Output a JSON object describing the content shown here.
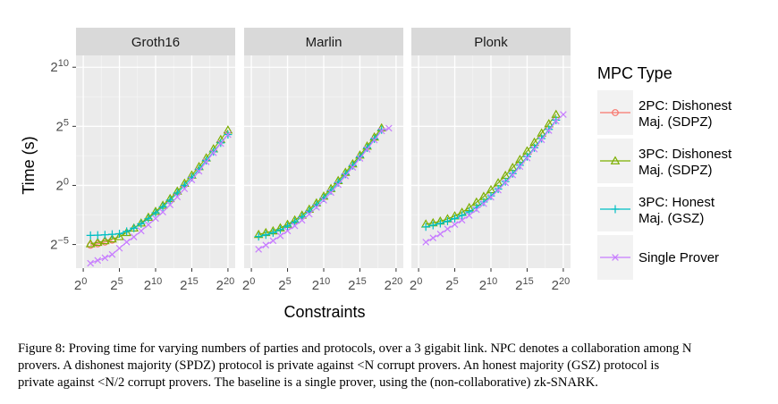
{
  "chart_data": {
    "type": "line",
    "facet_titles": [
      "Groth16",
      "Marlin",
      "Plonk"
    ],
    "xlabel": "Constraints",
    "ylabel": "Time (s)",
    "x_scale": "log2",
    "y_scale": "log2",
    "x_ticks": [
      {
        "value": 1,
        "base": "2",
        "exp": "0"
      },
      {
        "value": 32,
        "base": "2",
        "exp": "5"
      },
      {
        "value": 1024,
        "base": "2",
        "exp": "10"
      },
      {
        "value": 32768,
        "base": "2",
        "exp": "15"
      },
      {
        "value": 1048576,
        "base": "2",
        "exp": "20"
      }
    ],
    "y_ticks": [
      {
        "value": 0.03125,
        "base": "2",
        "exp": "−5"
      },
      {
        "value": 1,
        "base": "2",
        "exp": "0"
      },
      {
        "value": 32,
        "base": "2",
        "exp": "5"
      },
      {
        "value": 1024,
        "base": "2",
        "exp": "10"
      }
    ],
    "xlim": [
      0.5,
      2097152
    ],
    "ylim": [
      0.0078125,
      2048
    ],
    "grid": true,
    "legend": {
      "title": "MPC Type",
      "position": "right",
      "entries": [
        {
          "key": "2pc",
          "line1": "2PC: Dishonest",
          "line2": "Maj. (SDPZ)",
          "color": "#f8766d",
          "marker": "circle"
        },
        {
          "key": "3pcd",
          "line1": "3PC: Dishonest",
          "line2": "Maj. (SDPZ)",
          "color": "#7cae00",
          "marker": "triangle"
        },
        {
          "key": "3pch",
          "line1": "3PC: Honest",
          "line2": "Maj. (GSZ)",
          "color": "#00bfc4",
          "marker": "plus"
        },
        {
          "key": "single",
          "line1": "Single Prover",
          "line2": "",
          "color": "#c77cff",
          "marker": "cross"
        }
      ]
    },
    "facets": [
      {
        "name": "Groth16",
        "series": [
          {
            "key": "2pc",
            "points": [
              [
                2,
                0.03
              ],
              [
                4,
                0.0325
              ],
              [
                8,
                0.0359
              ],
              [
                16,
                0.0403
              ]
            ]
          },
          {
            "key": "3pcd",
            "points": [
              [
                2,
                0.0325
              ],
              [
                4,
                0.0352
              ],
              [
                8,
                0.0388
              ],
              [
                16,
                0.0432
              ],
              [
                32,
                0.0493
              ],
              [
                64,
                0.0628
              ],
              [
                128,
                0.0817
              ],
              [
                256,
                0.1097
              ],
              [
                512,
                0.1535
              ],
              [
                1024,
                0.217
              ],
              [
                2048,
                0.31
              ],
              [
                4096,
                0.46
              ],
              [
                8192,
                0.71
              ],
              [
                16384,
                1.13
              ],
              [
                32768,
                1.82
              ],
              [
                65536,
                3.0
              ],
              [
                131072,
                5.0
              ],
              [
                262144,
                8.5
              ],
              [
                524288,
                14.7
              ],
              [
                1048576,
                25.6
              ]
            ]
          },
          {
            "key": "3pch",
            "points": [
              [
                2,
                0.0532
              ],
              [
                4,
                0.054
              ],
              [
                8,
                0.0552
              ],
              [
                16,
                0.0568
              ],
              [
                32,
                0.0589
              ],
              [
                64,
                0.0673
              ],
              [
                128,
                0.0816
              ],
              [
                256,
                0.1052
              ],
              [
                512,
                0.1421
              ],
              [
                1024,
                0.2
              ],
              [
                2048,
                0.285
              ],
              [
                4096,
                0.42
              ],
              [
                8192,
                0.64
              ],
              [
                16384,
                1.0
              ],
              [
                32768,
                1.6
              ],
              [
                65536,
                2.6
              ],
              [
                131072,
                4.3
              ],
              [
                262144,
                7.2
              ],
              [
                524288,
                12.1
              ],
              [
                1048576,
                19.7
              ]
            ]
          },
          {
            "key": "single",
            "points": [
              [
                2,
                0.0104
              ],
              [
                4,
                0.0123
              ],
              [
                8,
                0.0143
              ],
              [
                16,
                0.0174
              ],
              [
                32,
                0.0251
              ],
              [
                64,
                0.0361
              ],
              [
                128,
                0.0486
              ],
              [
                256,
                0.0693
              ],
              [
                512,
                0.0998
              ],
              [
                1024,
                0.144
              ],
              [
                2048,
                0.21
              ],
              [
                4096,
                0.32
              ],
              [
                8192,
                0.51
              ],
              [
                16384,
                0.82
              ],
              [
                32768,
                1.38
              ],
              [
                65536,
                2.3
              ],
              [
                131072,
                4.0
              ],
              [
                262144,
                6.8
              ],
              [
                524288,
                11.7
              ],
              [
                1048576,
                19.7
              ]
            ]
          }
        ]
      },
      {
        "name": "Marlin",
        "series": [
          {
            "key": "3pcd",
            "points": [
              [
                2,
                0.056
              ],
              [
                4,
                0.0625
              ],
              [
                8,
                0.0693
              ],
              [
                16,
                0.0826
              ],
              [
                32,
                0.1015
              ],
              [
                64,
                0.1306
              ],
              [
                128,
                0.1741
              ],
              [
                256,
                0.2462
              ],
              [
                512,
                0.3573
              ],
              [
                1024,
                0.53
              ],
              [
                2048,
                0.83
              ],
              [
                4096,
                1.32
              ],
              [
                8192,
                2.14
              ],
              [
                16384,
                3.52
              ],
              [
                32768,
                5.9
              ],
              [
                65536,
                10.0
              ],
              [
                131072,
                17.0
              ],
              [
                262144,
                29.0
              ]
            ]
          },
          {
            "key": "3pch",
            "points": [
              [
                2,
                0.05
              ],
              [
                4,
                0.055
              ],
              [
                8,
                0.0625
              ],
              [
                16,
                0.0742
              ],
              [
                32,
                0.0918
              ],
              [
                64,
                0.1175
              ],
              [
                128,
                0.1575
              ],
              [
                256,
                0.2209
              ],
              [
                512,
                0.3206
              ],
              [
                1024,
                0.48
              ],
              [
                2048,
                0.74
              ],
              [
                4096,
                1.18
              ],
              [
                8192,
                1.93
              ],
              [
                16384,
                3.2
              ],
              [
                32768,
                5.3
              ],
              [
                65536,
                9.0
              ],
              [
                131072,
                15.3
              ],
              [
                262144,
                26.0
              ]
            ]
          },
          {
            "key": "single",
            "points": [
              [
                2,
                0.0236
              ],
              [
                4,
                0.0302
              ],
              [
                8,
                0.039
              ],
              [
                16,
                0.0521
              ],
              [
                32,
                0.0697
              ],
              [
                64,
                0.0934
              ],
              [
                128,
                0.1297
              ],
              [
                256,
                0.1854
              ],
              [
                512,
                0.2763
              ],
              [
                1024,
                0.42
              ],
              [
                2048,
                0.66
              ],
              [
                4096,
                1.05
              ],
              [
                8192,
                1.75
              ],
              [
                16384,
                2.9
              ],
              [
                32768,
                4.9
              ],
              [
                65536,
                8.3
              ],
              [
                131072,
                14.3
              ],
              [
                262144,
                24.5
              ],
              [
                524288,
                28.7
              ]
            ]
          }
        ]
      },
      {
        "name": "Plonk",
        "series": [
          {
            "key": "3pcd",
            "points": [
              [
                2,
                0.103
              ],
              [
                4,
                0.111
              ],
              [
                8,
                0.1227
              ],
              [
                16,
                0.1403
              ],
              [
                32,
                0.1667
              ],
              [
                64,
                0.206
              ],
              [
                128,
                0.2714
              ],
              [
                256,
                0.3731
              ],
              [
                512,
                0.5215
              ],
              [
                1024,
                0.77
              ],
              [
                2048,
                1.16
              ],
              [
                4096,
                1.79
              ],
              [
                8192,
                2.84
              ],
              [
                16384,
                4.55
              ],
              [
                32768,
                7.5
              ],
              [
                65536,
                12.5
              ],
              [
                131072,
                21.5
              ],
              [
                262144,
                37.0
              ],
              [
                524288,
                64.0
              ]
            ]
          },
          {
            "key": "3pch",
            "points": [
              [
                2,
                0.088
              ],
              [
                4,
                0.097
              ],
              [
                8,
                0.1073
              ],
              [
                16,
                0.1226
              ],
              [
                32,
                0.1431
              ],
              [
                64,
                0.1717
              ],
              [
                128,
                0.2137
              ],
              [
                256,
                0.2767
              ],
              [
                512,
                0.3792
              ],
              [
                1024,
                0.54
              ],
              [
                2048,
                0.81
              ],
              [
                4096,
                1.25
              ],
              [
                8192,
                2.0
              ],
              [
                16384,
                3.25
              ],
              [
                32768,
                5.4
              ],
              [
                65536,
                9.1
              ],
              [
                131072,
                15.6
              ],
              [
                262144,
                26.7
              ],
              [
                524288,
                46.0
              ]
            ]
          },
          {
            "key": "single",
            "points": [
              [
                2,
                0.0359
              ],
              [
                4,
                0.046
              ],
              [
                8,
                0.0578
              ],
              [
                16,
                0.0777
              ],
              [
                32,
                0.1012
              ],
              [
                64,
                0.1305
              ],
              [
                128,
                0.1717
              ],
              [
                256,
                0.2417
              ],
              [
                512,
                0.3431
              ],
              [
                1024,
                0.5
              ],
              [
                2048,
                0.76
              ],
              [
                4096,
                1.17
              ],
              [
                8192,
                1.85
              ],
              [
                16384,
                3.02
              ],
              [
                32768,
                5.0
              ],
              [
                65536,
                8.4
              ],
              [
                131072,
                14.5
              ],
              [
                262144,
                25.0
              ],
              [
                524288,
                43.5
              ],
              [
                1048576,
                64.0
              ]
            ]
          }
        ]
      }
    ]
  },
  "caption": {
    "line1": "Figure 8: Proving time for varying numbers of parties and protocols, over a 3 gigabit link. NPC denotes a collaboration among N",
    "line2": "provers. A dishonest majority (SPDZ) protocol is private against <N corrupt provers. An honest majority (GSZ) protocol is",
    "line3": "private against <N/2 corrupt provers. The baseline is a single prover, using the (non-collaborative) zk-SNARK."
  }
}
